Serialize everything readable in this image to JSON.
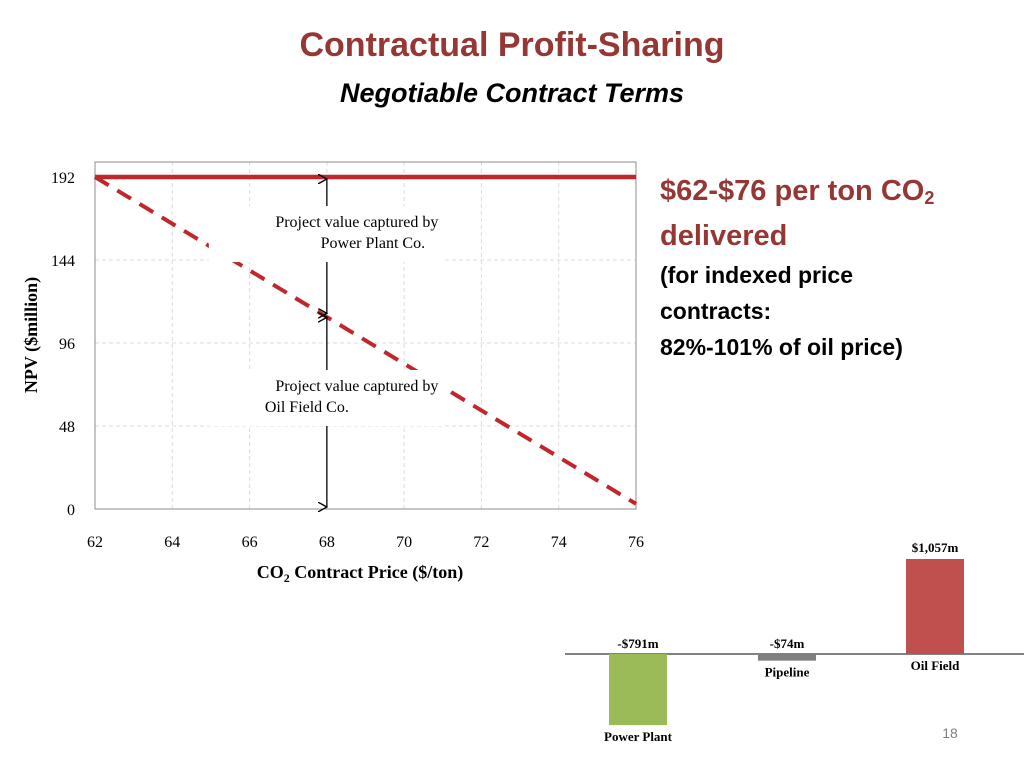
{
  "slide": {
    "title": "Contractual Profit-Sharing",
    "subtitle": "Negotiable Contract Terms",
    "page_number": "18"
  },
  "side_text": {
    "headline_main": "$62-$76 per ton CO",
    "headline_sub": "2",
    "headline_line2": "delivered",
    "note_line1": "(for indexed price",
    "note_line2": "contracts:",
    "note_line3": "82%-101% of oil price)"
  },
  "chart_data": [
    {
      "type": "line",
      "title": "",
      "xlabel": "CO2 Contract Price ($/ton)",
      "ylabel": "NPV ($million)",
      "x_ticks": [
        62,
        64,
        66,
        68,
        70,
        72,
        74,
        76
      ],
      "y_ticks": [
        0,
        48,
        96,
        144,
        192
      ],
      "xlim": [
        62,
        76
      ],
      "ylim": [
        0,
        192
      ],
      "grid": true,
      "series": [
        {
          "style": "solid",
          "color": "#c0272d",
          "x": [
            62,
            76
          ],
          "y": [
            192,
            192
          ]
        },
        {
          "style": "dashed",
          "color": "#c0272d",
          "x": [
            62,
            76
          ],
          "y": [
            192,
            3
          ]
        }
      ],
      "annotations": [
        {
          "text_line1": "Project value captured by",
          "text_line2": "Power Plant Co.",
          "x": 68,
          "y_from": 192,
          "y_to": 112
        },
        {
          "text_line1": "Project value captured by",
          "text_line2": "Oil Field Co.",
          "x": 68,
          "y_from": 112,
          "y_to": 0
        }
      ]
    },
    {
      "type": "bar",
      "categories": [
        "Power Plant",
        "Pipeline",
        "Oil Field"
      ],
      "values": [
        -791,
        -74,
        1057
      ],
      "value_labels": [
        "-$791m",
        "-$74m",
        "$1,057m"
      ],
      "colors": [
        "#9bbb59",
        "#7f7f7f",
        "#c0504d"
      ]
    }
  ]
}
